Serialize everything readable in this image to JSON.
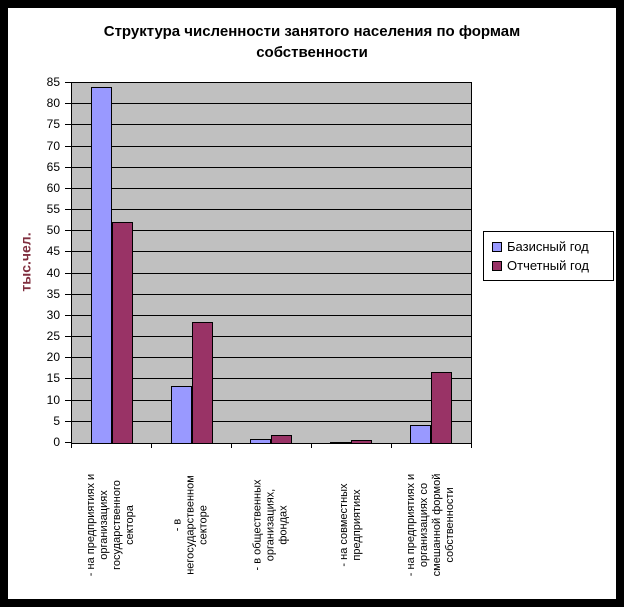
{
  "chart_data": {
    "type": "bar",
    "title": "Структура численности занятого населения по формам\nсобственности",
    "ylabel": "тыс.чел.",
    "ylabel_color": "#802F3F",
    "ylim": [
      0,
      85
    ],
    "ytick_step": 5,
    "grid": true,
    "legend_position": "right",
    "plot_bg_color": "#C0C0C0",
    "gridline_color": "#000000",
    "frame_color": "#000000",
    "background_color": "#FFFFFF",
    "categories": [
      "- на предприятиях и\nорганизациях\nгосударственного\nсектора",
      "- в\nнегосударственном\nсекторе",
      "- в общественных\nорганизациях,\nфондах",
      "- на совместных\nпредприятиях",
      "- на предприятиях и\nорганизациях со\nсмешанной формой\nсобственности"
    ],
    "series": [
      {
        "name": "Базисный год",
        "color": "#9999FF",
        "values": [
          84,
          13.5,
          1,
          0.2,
          4.2
        ]
      },
      {
        "name": "Отчетный год",
        "color": "#993366",
        "values": [
          52.3,
          28.5,
          1.8,
          0.7,
          16.8
        ]
      }
    ]
  }
}
